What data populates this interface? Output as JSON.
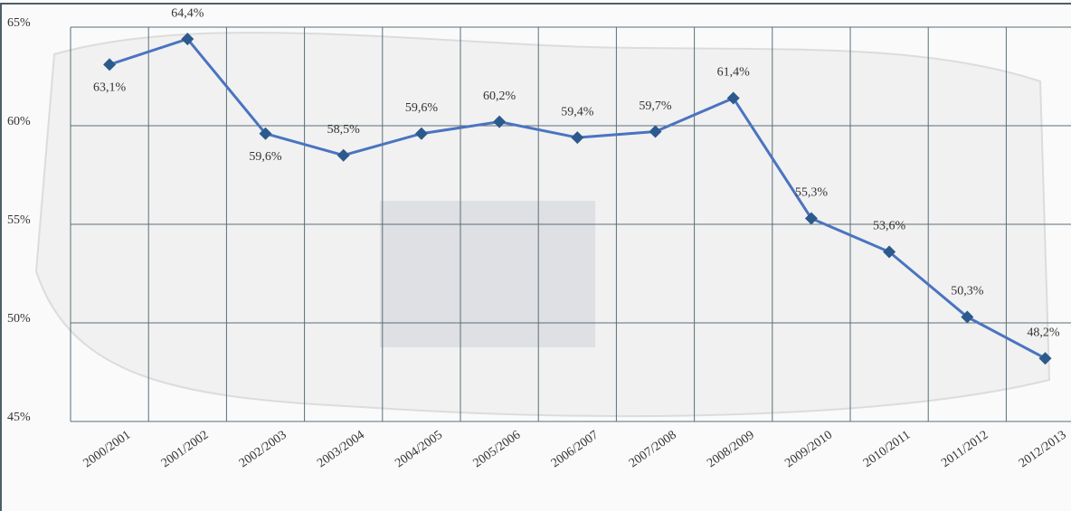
{
  "chart_data": {
    "type": "line",
    "categories": [
      "2000/2001",
      "2001/2002",
      "2002/2003",
      "2003/2004",
      "2004/2005",
      "2005/2006",
      "2006/2007",
      "2007/2008",
      "2008/2009",
      "2009/2010",
      "2010/2011",
      "2011/2012",
      "2012/2013"
    ],
    "series": [
      {
        "color": "#4a74c0",
        "values": [
          63.1,
          64.4,
          59.6,
          58.5,
          59.6,
          60.2,
          59.4,
          59.7,
          61.4,
          55.3,
          53.6,
          50.3,
          48.2
        ],
        "value_labels": [
          "63,1%",
          "64,4%",
          "59,6%",
          "58,5%",
          "59,6%",
          "60,2%",
          "59,4%",
          "59,7%",
          "61,4%",
          "55,3%",
          "53,6%",
          "50,3%",
          "48,2%"
        ]
      }
    ],
    "ylim": [
      45,
      65
    ],
    "yticks": [
      {
        "value": 45,
        "label": "45%"
      },
      {
        "value": 50,
        "label": "50%"
      },
      {
        "value": 55,
        "label": "55%"
      },
      {
        "value": 60,
        "label": "60%"
      },
      {
        "value": 65,
        "label": "65%"
      }
    ],
    "grid": true
  }
}
